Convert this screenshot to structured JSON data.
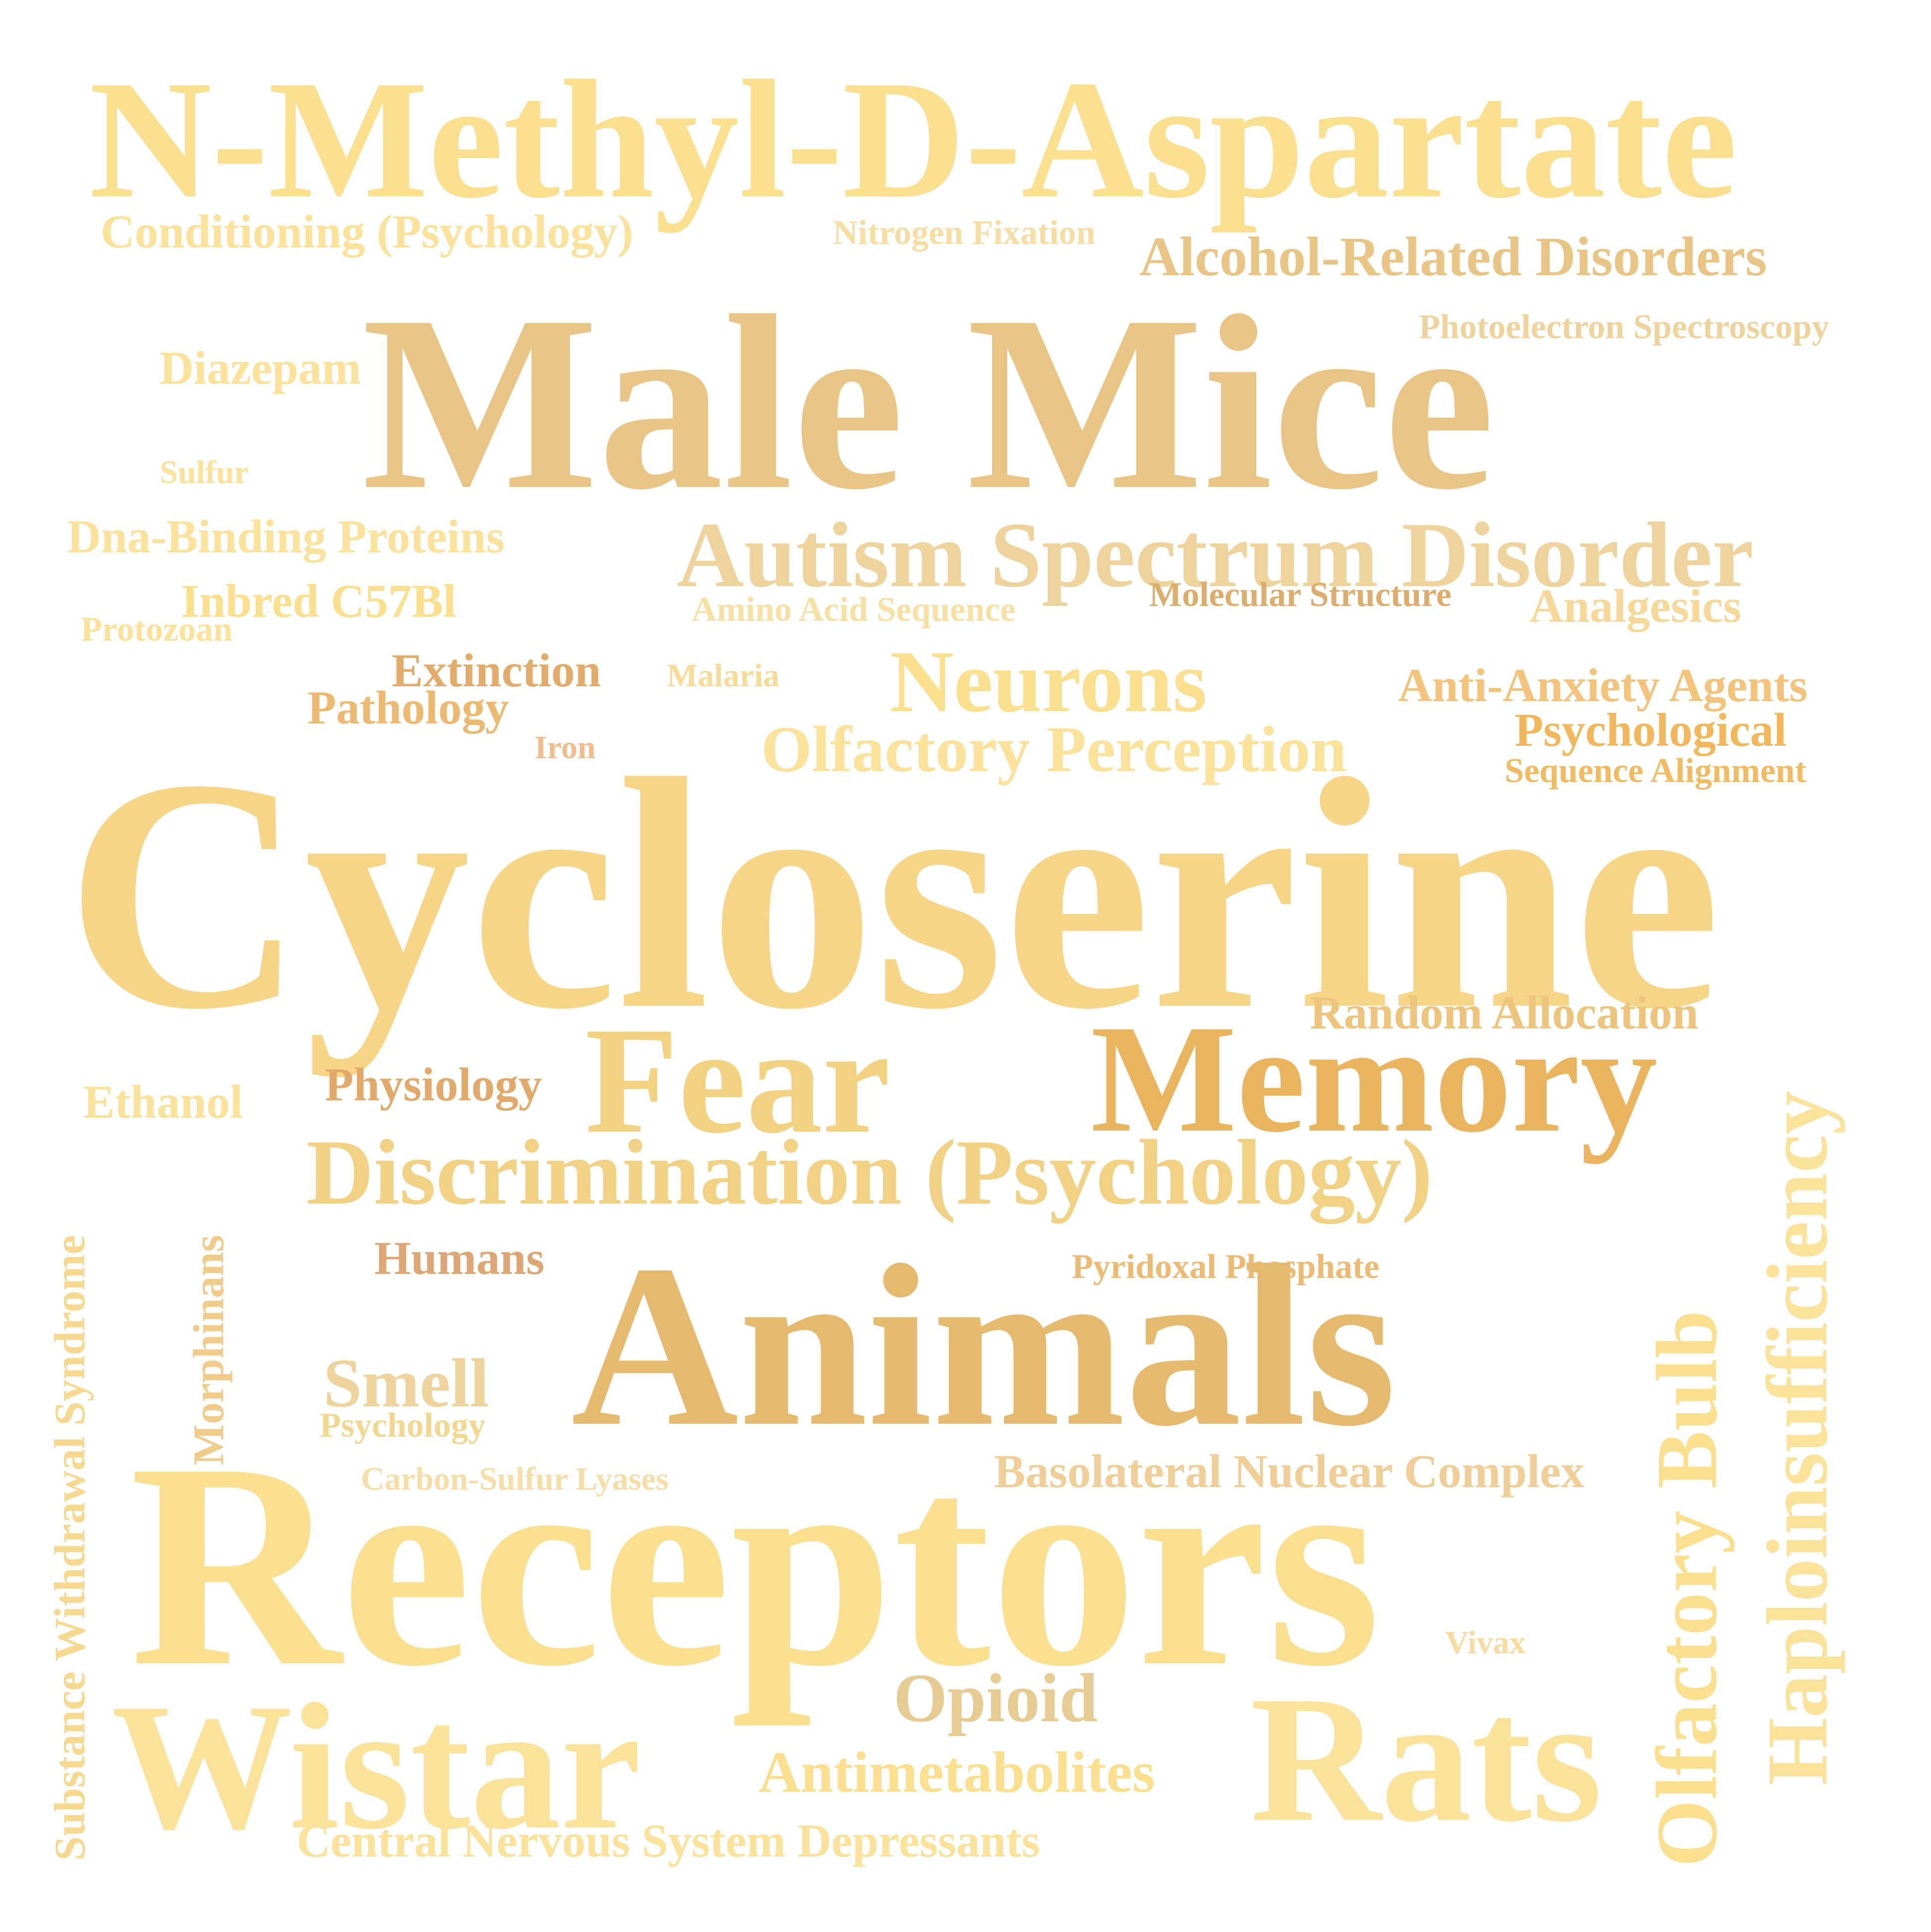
{
  "word_cloud": {
    "words": [
      {
        "text": "N-Methyl-D-Aspartate",
        "color": "#FAE08E"
      },
      {
        "text": "Conditioning (Psychology)",
        "color": "#FBE29A"
      },
      {
        "text": "Nitrogen Fixation",
        "color": "#F6DDA4"
      },
      {
        "text": "Alcohol-Related Disorders",
        "color": "#E9C585"
      },
      {
        "text": "Male Mice",
        "color": "#E9C585"
      },
      {
        "text": "Photoelectron Spectroscopy",
        "color": "#EFD39D"
      },
      {
        "text": "Diazepam",
        "color": "#FBE29A"
      },
      {
        "text": "Sulfur",
        "color": "#FBE29A"
      },
      {
        "text": "Dna-Binding Proteins",
        "color": "#FBE29A"
      },
      {
        "text": "Autism Spectrum Disorder",
        "color": "#EFD39D"
      },
      {
        "text": "Inbred C57Bl",
        "color": "#FAE08E"
      },
      {
        "text": "Protozoan",
        "color": "#FBE29A"
      },
      {
        "text": "Amino Acid Sequence",
        "color": "#F6E0A4"
      },
      {
        "text": "Molecular Structure",
        "color": "#DCAD6C"
      },
      {
        "text": "Analgesics",
        "color": "#F6D998"
      },
      {
        "text": "Extinction",
        "color": "#E3AB6A"
      },
      {
        "text": "Pathology",
        "color": "#EDB970"
      },
      {
        "text": "Malaria",
        "color": "#F7DC98"
      },
      {
        "text": "Neurons",
        "color": "#FAE08E"
      },
      {
        "text": "Anti-Anxiety Agents",
        "color": "#F3C27B"
      },
      {
        "text": "Iron",
        "color": "#F0BE8E"
      },
      {
        "text": "Olfactory Perception",
        "color": "#FBE29A"
      },
      {
        "text": "Psychological",
        "color": "#F1B75A"
      },
      {
        "text": "Sequence Alignment",
        "color": "#F0BB63"
      },
      {
        "text": "Cycloserine",
        "color": "#F6D587"
      },
      {
        "text": "Random Allocation",
        "color": "#EDC47B"
      },
      {
        "text": "Fear",
        "color": "#F2D281"
      },
      {
        "text": "Memory",
        "color": "#EAB45E"
      },
      {
        "text": "Haploinsufficiency",
        "color": "#FBE29A"
      },
      {
        "text": "Ethanol",
        "color": "#FBE29A"
      },
      {
        "text": "Physiology",
        "color": "#E1AA6A"
      },
      {
        "text": "Discrimination (Psychology)",
        "color": "#F1D183"
      },
      {
        "text": "Substance Withdrawal Syndrome",
        "color": "#F6D98F"
      },
      {
        "text": "Morphinans",
        "color": "#F0CB8A"
      },
      {
        "text": "Humans",
        "color": "#DDA674"
      },
      {
        "text": "Pyridoxal Phosphate",
        "color": "#EDBA74"
      },
      {
        "text": "Animals",
        "color": "#E5BA6F"
      },
      {
        "text": "Olfactory Bulb",
        "color": "#FAE08E"
      },
      {
        "text": "Smell",
        "color": "#EFD39D"
      },
      {
        "text": "Psychology",
        "color": "#F2D791"
      },
      {
        "text": "Carbon-Sulfur Lyases",
        "color": "#F6DEA8"
      },
      {
        "text": "Basolateral Nuclear Complex",
        "color": "#EFCE97"
      },
      {
        "text": "Receptors",
        "color": "#FAE08E"
      },
      {
        "text": "Vivax",
        "color": "#F7DB9F"
      },
      {
        "text": "Opioid",
        "color": "#E6CC93"
      },
      {
        "text": "Wistar",
        "color": "#FBE29A"
      },
      {
        "text": "Antimetabolites",
        "color": "#FAE08E"
      },
      {
        "text": "Rats",
        "color": "#FBE29A"
      },
      {
        "text": "Central Nervous System Depressants",
        "color": "#FBE29A"
      }
    ]
  }
}
